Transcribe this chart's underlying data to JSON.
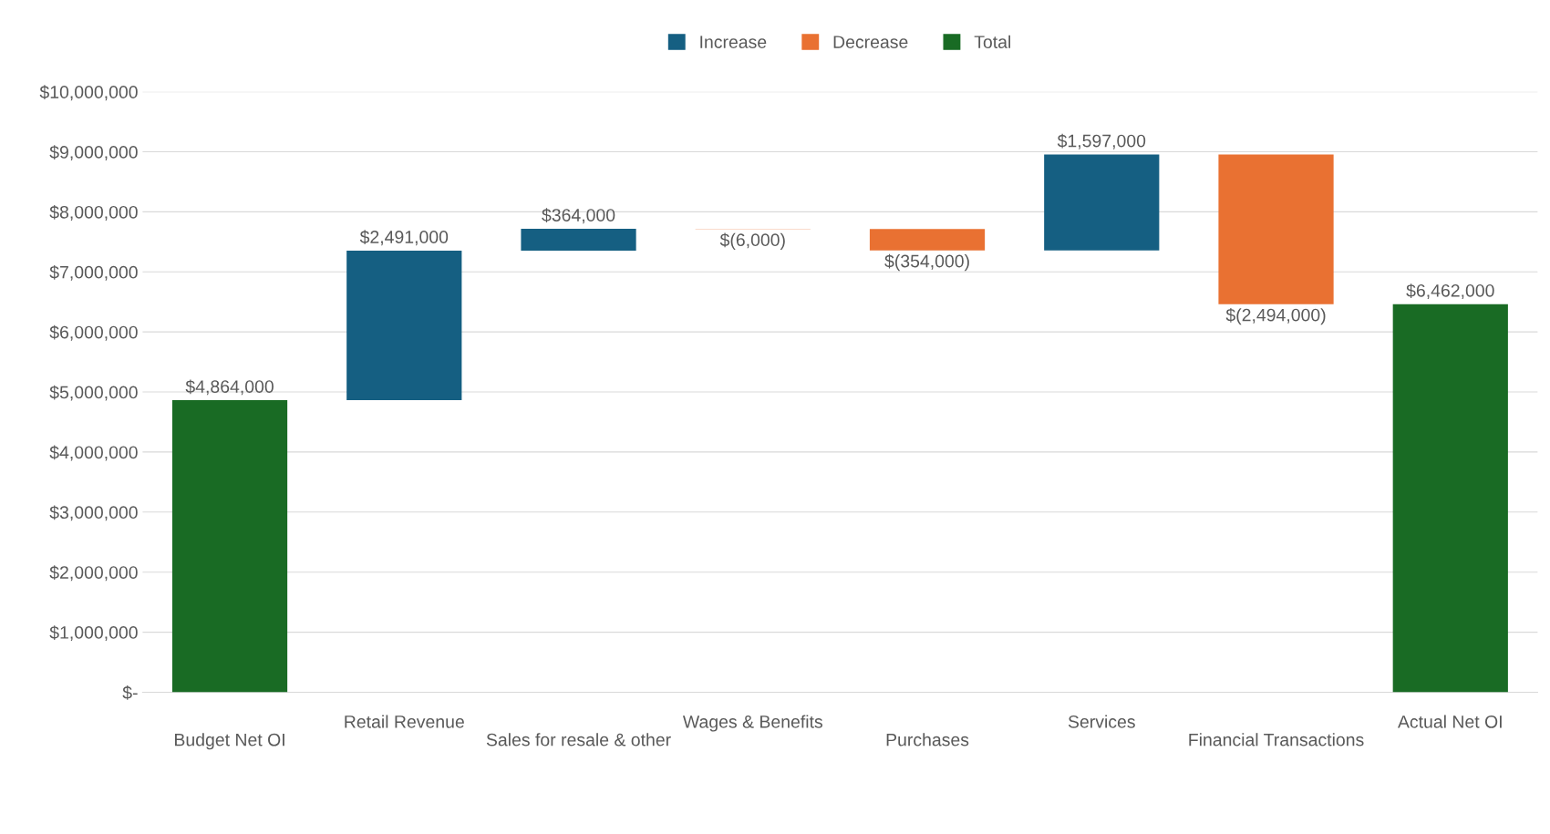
{
  "chart_data": {
    "type": "bar",
    "categories": [
      "Budget Net OI",
      "Retail Revenue",
      "Sales for resale & other",
      "Wages & Benefits",
      "Purchases",
      "Services",
      "Financial Transactions",
      "Actual Net OI"
    ],
    "series": [
      {
        "name": "Increase",
        "color": "#155f82",
        "values": [
          null,
          2491000,
          364000,
          null,
          null,
          1597000,
          null,
          null
        ],
        "base": [
          null,
          4864000,
          7355000,
          null,
          null,
          7359000,
          null,
          null
        ],
        "value_labels": [
          null,
          "$2,491,000",
          "$364,000",
          null,
          null,
          "$1,597,000",
          null,
          null
        ]
      },
      {
        "name": "Decrease",
        "color": "#e97132",
        "values": [
          null,
          null,
          null,
          -6000,
          -354000,
          null,
          -2494000,
          null
        ],
        "base": [
          null,
          null,
          null,
          7719000,
          7713000,
          null,
          8956000,
          null
        ],
        "value_labels": [
          null,
          null,
          null,
          "$(6,000)",
          "$(354,000)",
          null,
          "$(2,494,000)",
          null
        ]
      },
      {
        "name": "Total",
        "color": "#196b24",
        "values": [
          4864000,
          null,
          null,
          null,
          null,
          null,
          null,
          6462000
        ],
        "base": [
          0,
          null,
          null,
          null,
          null,
          null,
          null,
          0
        ],
        "value_labels": [
          "$4,864,000",
          null,
          null,
          null,
          null,
          null,
          null,
          "$6,462,000"
        ]
      }
    ],
    "ylim": [
      0,
      10000000
    ],
    "yticks": [
      {
        "value": 0,
        "label": "$-"
      },
      {
        "value": 1000000,
        "label": "$1,000,000"
      },
      {
        "value": 2000000,
        "label": "$2,000,000"
      },
      {
        "value": 3000000,
        "label": "$3,000,000"
      },
      {
        "value": 4000000,
        "label": "$4,000,000"
      },
      {
        "value": 5000000,
        "label": "$5,000,000"
      },
      {
        "value": 6000000,
        "label": "$6,000,000"
      },
      {
        "value": 7000000,
        "label": "$7,000,000"
      },
      {
        "value": 8000000,
        "label": "$8,000,000"
      },
      {
        "value": 9000000,
        "label": "$9,000,000"
      },
      {
        "value": 10000000,
        "label": "$10,000,000"
      }
    ],
    "grid": "y",
    "legend": "top"
  }
}
